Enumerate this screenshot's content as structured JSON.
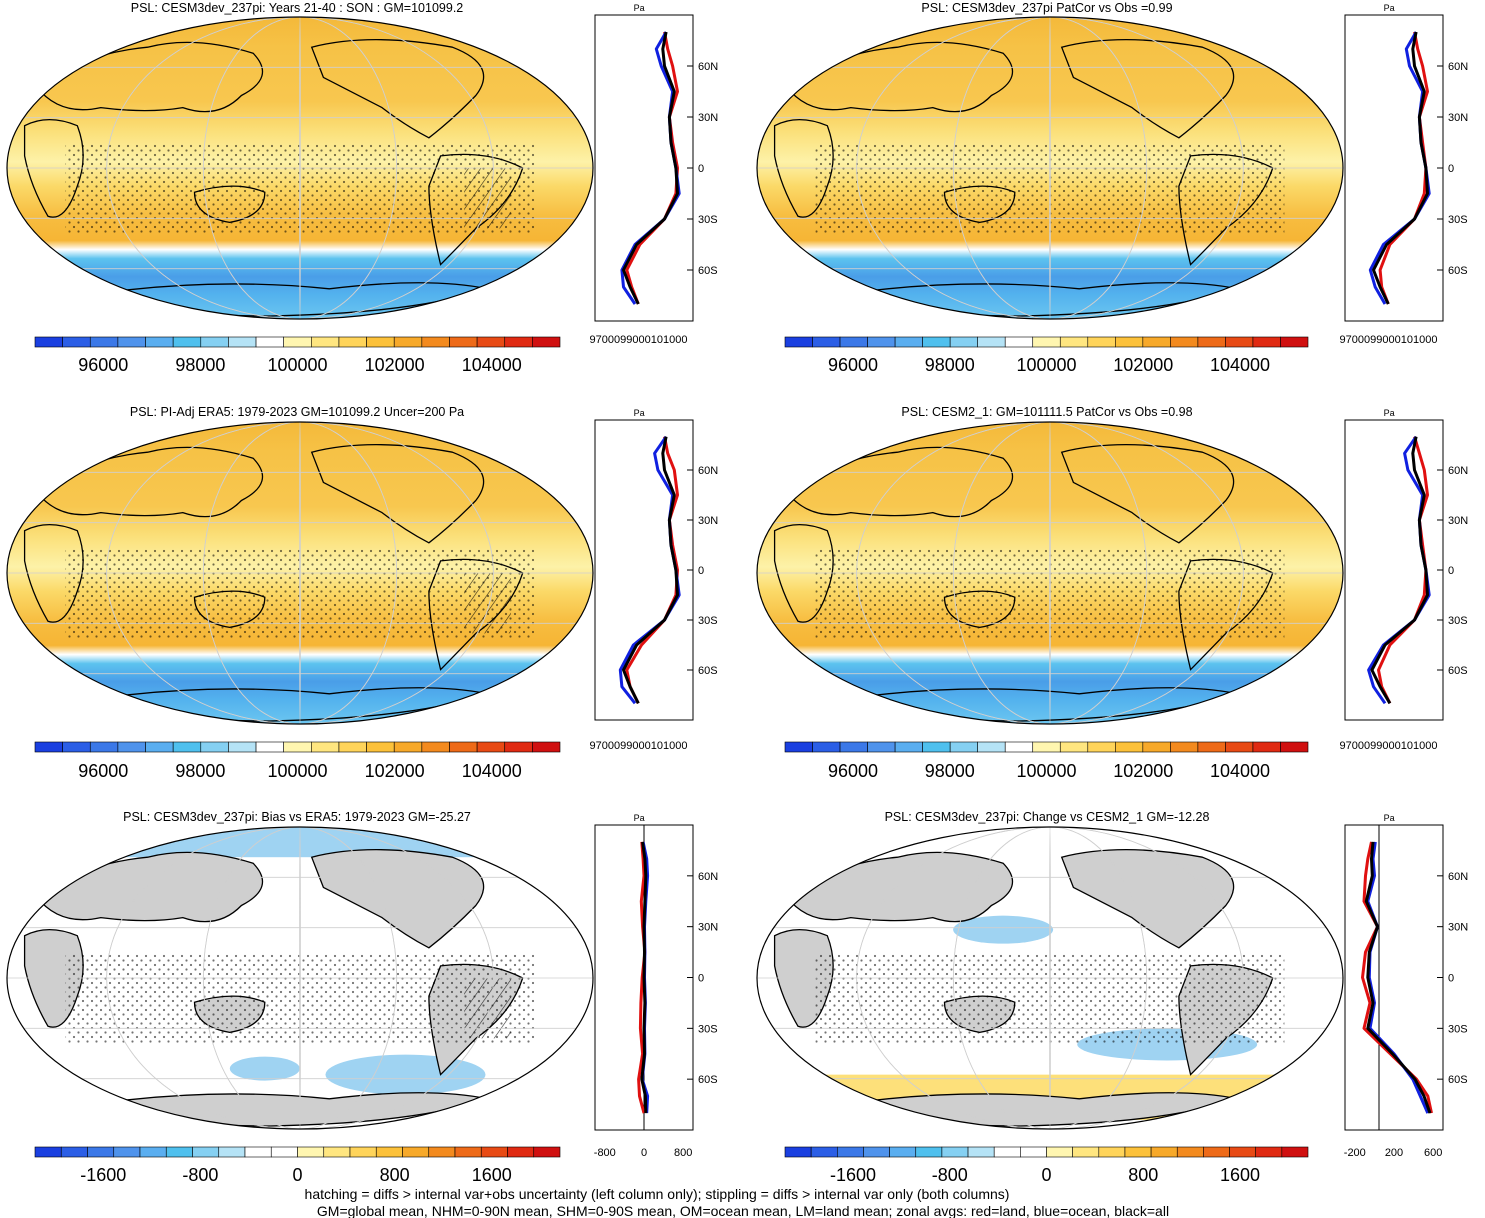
{
  "chart_data": [
    {
      "type": "heatmap",
      "title": "PSL: CESM3dev_237pi: Years 21-40 : SON : GM=101099.2",
      "colorbar_ticks": [
        "96000",
        "98000",
        "100000",
        "102000",
        "104000"
      ],
      "profile": {
        "unit": "Pa",
        "x_ticks": [
          "97000",
          "99000101000"
        ],
        "lat_ticks": [
          "60N",
          "30N",
          "0",
          "30S",
          "60S"
        ],
        "series": [
          {
            "name": "land",
            "color": "#e01010",
            "values": [
              101000,
              101200,
              101500,
              101800,
              101300,
              101500,
              101800,
              101700,
              101000,
              99500,
              98700,
              99000,
              99400
            ]
          },
          {
            "name": "ocean",
            "color": "#1020e0",
            "values": [
              101100,
              100500,
              100800,
              101500,
              101300,
              101400,
              101700,
              101900,
              101000,
              99200,
              98400,
              98500,
              99200
            ]
          },
          {
            "name": "all",
            "color": "#000000",
            "values": [
              101100,
              100900,
              101000,
              101600,
              101300,
              101400,
              101700,
              101800,
              101000,
              99300,
              98500,
              98900,
              99400
            ]
          }
        ]
      }
    },
    {
      "type": "heatmap",
      "title": "PSL: CESM3dev_237pi PatCor vs Obs =0.99",
      "colorbar_ticks": [
        "96000",
        "98000",
        "100000",
        "102000",
        "104000"
      ],
      "profile": {
        "unit": "Pa",
        "x_ticks": [
          "97000",
          "99000101000"
        ],
        "lat_ticks": [
          "60N",
          "30N",
          "0",
          "30S",
          "60S"
        ],
        "series": [
          {
            "name": "land",
            "color": "#e01010",
            "values": [
              101000,
              101200,
              101500,
              101800,
              101300,
              101500,
              101700,
              101600,
              101000,
              99500,
              98900,
              99000,
              99400
            ]
          },
          {
            "name": "ocean",
            "color": "#1020e0",
            "values": [
              101100,
              100500,
              100700,
              101500,
              101300,
              101400,
              101700,
              101900,
              101000,
              99100,
              98300,
              98600,
              99200
            ]
          },
          {
            "name": "all",
            "color": "#000000",
            "values": [
              101100,
              100900,
              101000,
              101600,
              101300,
              101400,
              101700,
              101800,
              101000,
              99300,
              98500,
              98900,
              99400
            ]
          }
        ]
      }
    },
    {
      "type": "heatmap",
      "title": "PSL: PI-Adj ERA5: 1979-2023 GM=101099.2 Uncer=200 Pa",
      "colorbar_ticks": [
        "96000",
        "98000",
        "100000",
        "102000",
        "104000"
      ],
      "profile": {
        "unit": "Pa",
        "x_ticks": [
          "97000",
          "99000101000"
        ],
        "lat_ticks": [
          "60N",
          "30N",
          "0",
          "30S",
          "60S"
        ],
        "series": [
          {
            "name": "land",
            "color": "#e01010",
            "values": [
              101000,
              101200,
              101600,
              101800,
              101300,
              101500,
              101800,
              101700,
              101000,
              99600,
              98700,
              98900,
              99400
            ]
          },
          {
            "name": "ocean",
            "color": "#1020e0",
            "values": [
              101100,
              100400,
              100600,
              101500,
              101300,
              101400,
              101700,
              101900,
              101000,
              99100,
              98300,
              98400,
              99200
            ]
          },
          {
            "name": "all",
            "color": "#000000",
            "values": [
              101100,
              100900,
              101000,
              101600,
              101300,
              101400,
              101700,
              101800,
              101000,
              99300,
              98500,
              98900,
              99400
            ]
          }
        ]
      }
    },
    {
      "type": "heatmap",
      "title": "PSL: CESM2_1: GM=101111.5 PatCor vs Obs =0.98",
      "colorbar_ticks": [
        "96000",
        "98000",
        "100000",
        "102000",
        "104000"
      ],
      "profile": {
        "unit": "Pa",
        "x_ticks": [
          "97000",
          "99000101000"
        ],
        "lat_ticks": [
          "60N",
          "30N",
          "0",
          "30S",
          "60S"
        ],
        "series": [
          {
            "name": "land",
            "color": "#e01010",
            "values": [
              101000,
              101300,
              101600,
              101800,
              101300,
              101500,
              101700,
              101600,
              101000,
              99500,
              98800,
              99000,
              99500
            ]
          },
          {
            "name": "ocean",
            "color": "#1020e0",
            "values": [
              101100,
              100400,
              100600,
              101500,
              101300,
              101400,
              101700,
              101900,
              101000,
              99100,
              98200,
              98500,
              99200
            ]
          },
          {
            "name": "all",
            "color": "#000000",
            "values": [
              101100,
              100900,
              101000,
              101600,
              101300,
              101400,
              101700,
              101800,
              101000,
              99200,
              98400,
              98900,
              99500
            ]
          }
        ]
      }
    },
    {
      "type": "heatmap",
      "title": "PSL: CESM3dev_237pi: Bias vs ERA5: 1979-2023  GM=-25.27",
      "colorbar_ticks": [
        "-1600",
        "-800",
        "0",
        "800",
        "1600"
      ],
      "profile": {
        "unit": "Pa",
        "x_ticks": [
          "-800",
          "0",
          "800"
        ],
        "lat_ticks": [
          "60N",
          "30N",
          "0",
          "30S",
          "60S"
        ],
        "series": [
          {
            "name": "land",
            "color": "#e01010",
            "values": [
              -50,
              -20,
              0,
              -60,
              -30,
              20,
              -40,
              -70,
              -80,
              -30,
              -120,
              -100,
              0
            ]
          },
          {
            "name": "ocean",
            "color": "#1020e0",
            "values": [
              -20,
              60,
              80,
              40,
              10,
              20,
              10,
              30,
              10,
              20,
              -40,
              80,
              60
            ]
          },
          {
            "name": "all",
            "color": "#000000",
            "values": [
              -30,
              20,
              40,
              20,
              0,
              10,
              0,
              20,
              0,
              10,
              -50,
              30,
              40
            ]
          }
        ]
      }
    },
    {
      "type": "heatmap",
      "title": "PSL: CESM3dev_237pi: Change vs CESM2_1 GM=-12.28",
      "colorbar_ticks": [
        "-1600",
        "-800",
        "0",
        "800",
        "1600"
      ],
      "profile": {
        "unit": "Pa",
        "x_ticks": [
          "-200",
          "200",
          "600"
        ],
        "lat_ticks": [
          "60N",
          "30N",
          "0",
          "30S",
          "60S"
        ],
        "series": [
          {
            "name": "land",
            "color": "#e01010",
            "values": [
              -100,
              -150,
              -180,
              -200,
              -20,
              -180,
              -220,
              -120,
              -200,
              150,
              500,
              650,
              700
            ]
          },
          {
            "name": "ocean",
            "color": "#1020e0",
            "values": [
              -50,
              -80,
              -60,
              -150,
              -20,
              -120,
              -130,
              -60,
              -120,
              200,
              450,
              550,
              650
            ]
          },
          {
            "name": "all",
            "color": "#000000",
            "values": [
              -80,
              -100,
              -90,
              -170,
              -20,
              -130,
              -150,
              -80,
              -150,
              180,
              480,
              600,
              680
            ]
          }
        ]
      }
    }
  ],
  "footer": {
    "line1": "hatching = diffs > internal var+obs uncertainty (left column only); stippling = diffs > internal var only (both columns)",
    "line2": "GM=global mean, NHM=0-90N mean, SHM=0-90S mean, OM=ocean mean, LM=land mean; zonal avgs: red=land, blue=ocean, black=all"
  },
  "colors": {
    "abs_scale": [
      "#1a3fe0",
      "#2b5ee6",
      "#3b78e8",
      "#4f93ec",
      "#5aaef0",
      "#4fc0ee",
      "#85d0f2",
      "#b5e3f6",
      "#ffffff",
      "#fff6b0",
      "#ffe680",
      "#ffd45a",
      "#fcc13a",
      "#f7a92a",
      "#f38a1e",
      "#ee6a18",
      "#e84a14",
      "#e02a12",
      "#d01010"
    ],
    "diff_scale": [
      "#1a3fe0",
      "#2b5ee6",
      "#3b78e8",
      "#4f93ec",
      "#5aaef0",
      "#4fc0ee",
      "#85d0f2",
      "#b5e3f6",
      "#ffffff",
      "#ffffff",
      "#fff6b0",
      "#ffe680",
      "#ffd45a",
      "#fcc13a",
      "#f7a92a",
      "#f38a1e",
      "#ee6a18",
      "#e84a14",
      "#e02a12",
      "#d01010"
    ],
    "land_gray": "#cfcfcf"
  }
}
